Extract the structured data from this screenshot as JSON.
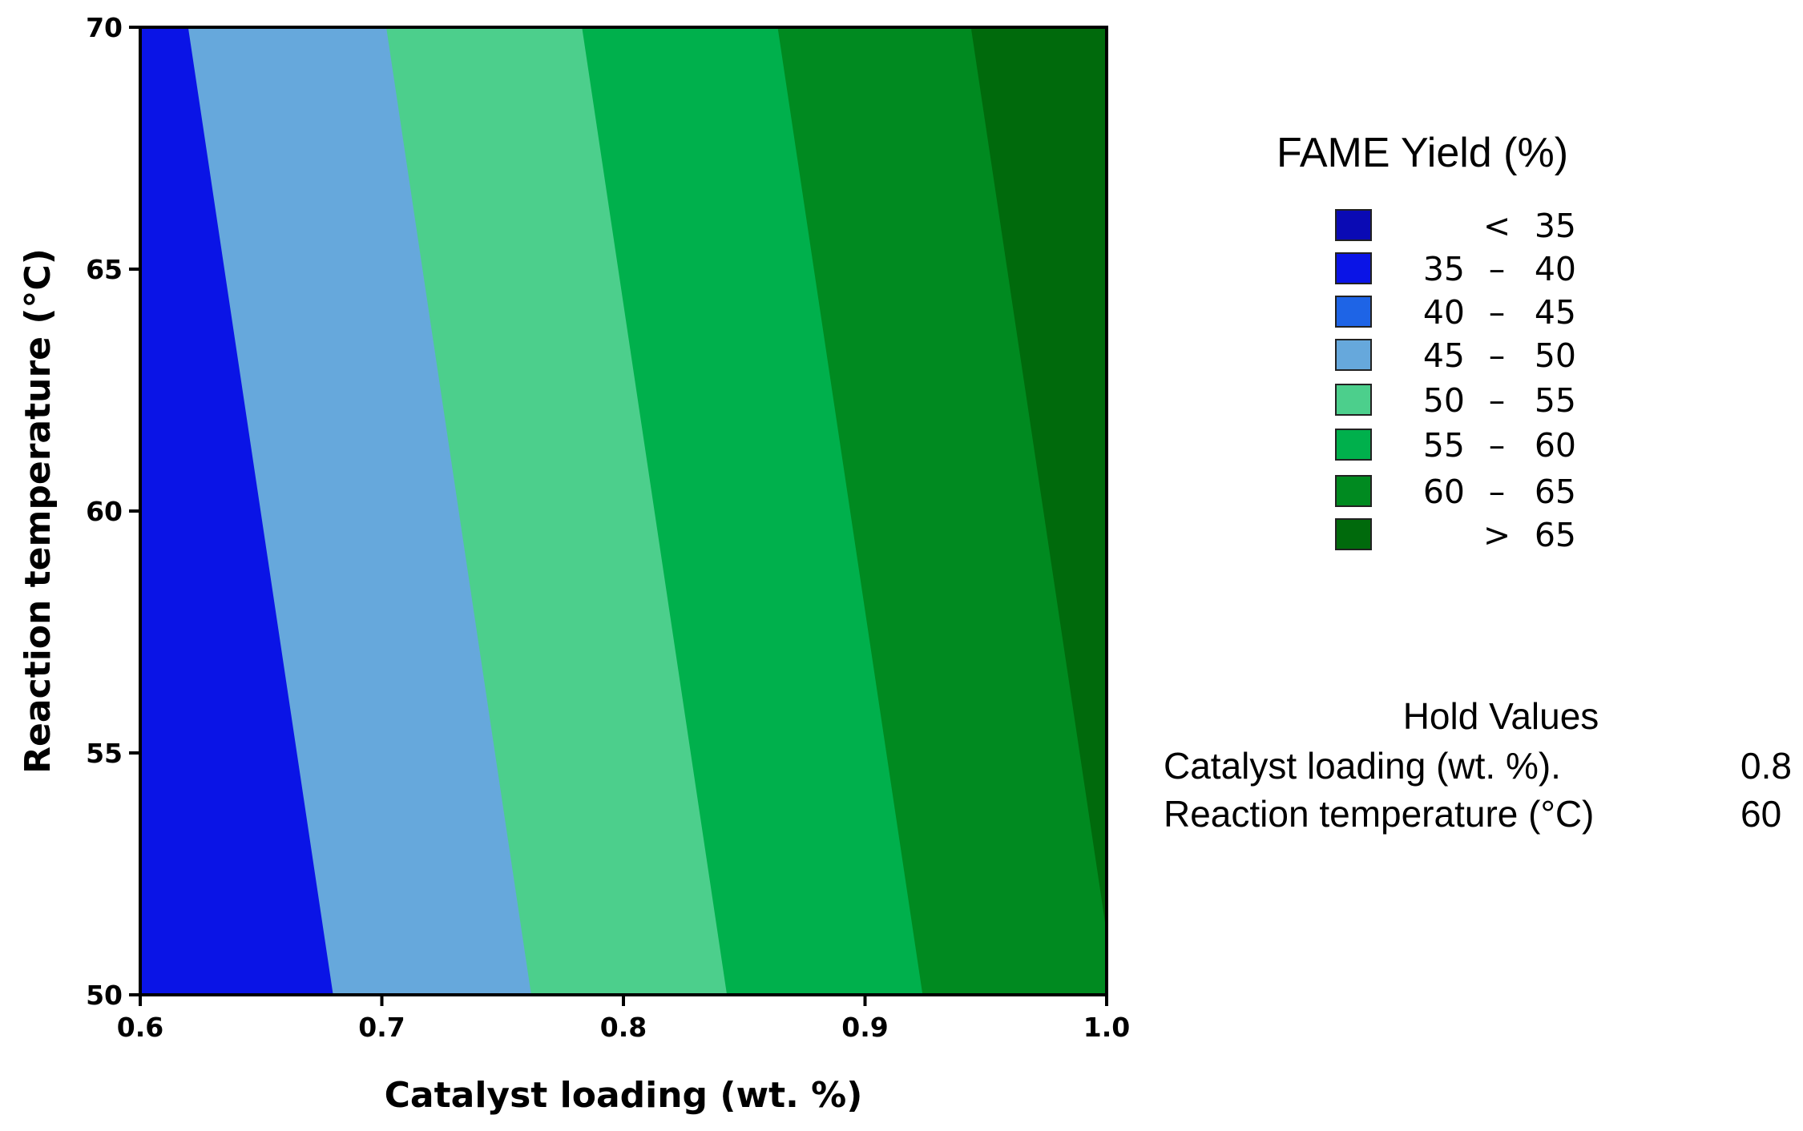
{
  "chart_data": {
    "type": "contour",
    "title": "",
    "xlabel": "Catalyst loading (wt. %)",
    "ylabel": "Reaction temperature (°C)",
    "xlim": [
      0.6,
      1.0
    ],
    "ylim": [
      50,
      70
    ],
    "x_ticks": [
      0.6,
      0.7,
      0.8,
      0.9,
      1.0
    ],
    "x_tick_labels": [
      "0.6",
      "0.7",
      "0.8",
      "0.9",
      "1.0"
    ],
    "y_ticks": [
      50,
      55,
      60,
      65,
      70
    ],
    "y_tick_labels": [
      "50",
      "55",
      "60",
      "65",
      "70"
    ],
    "grid": false,
    "legend_placement": "right",
    "legend": {
      "title": "FAME Yield (%)",
      "bins": [
        {
          "low": "",
          "op": "<",
          "high": "35",
          "color": "#0a0ab4"
        },
        {
          "low": "35",
          "op": "–",
          "high": "40",
          "color": "#0a14e6"
        },
        {
          "low": "40",
          "op": "–",
          "high": "45",
          "color": "#1e64e6"
        },
        {
          "low": "45",
          "op": "–",
          "high": "50",
          "color": "#66a8dc"
        },
        {
          "low": "50",
          "op": "–",
          "high": "55",
          "color": "#4ccf8c"
        },
        {
          "low": "55",
          "op": "–",
          "high": "60",
          "color": "#00b04c"
        },
        {
          "low": "60",
          "op": "–",
          "high": "65",
          "color": "#008a20"
        },
        {
          "low": "",
          "op": ">",
          "high": "65",
          "color": "#006a0c"
        }
      ]
    },
    "contour_boundaries": [
      {
        "level": 40,
        "x_at_ymin": 0.68,
        "x_at_ymax": 0.62
      },
      {
        "level": 50,
        "x_at_ymin": 0.762,
        "x_at_ymax": 0.702
      },
      {
        "level": 55,
        "x_at_ymin": 0.843,
        "x_at_ymax": 0.783
      },
      {
        "level": 60,
        "x_at_ymin": 0.924,
        "x_at_ymax": 0.864
      },
      {
        "level": 65,
        "x_at_ymin": 1.004,
        "x_at_ymax": 0.944
      }
    ],
    "hold_values": {
      "title": "Hold Values",
      "items": [
        {
          "label": "Catalyst loading (wt. %).",
          "value": "0.8"
        },
        {
          "label": "Reaction temperature (°C)",
          "value": "60"
        }
      ]
    }
  }
}
